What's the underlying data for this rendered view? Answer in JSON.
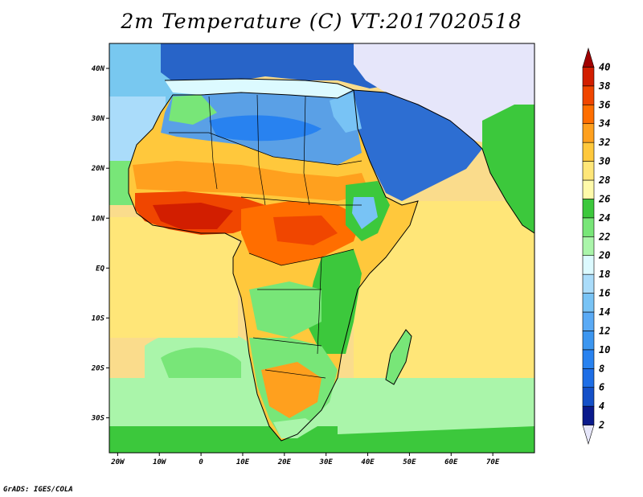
{
  "title": "2m Temperature (C) VT:2017020518",
  "credit": "GrADS: IGES/COLA",
  "map": {
    "lon_range": [
      -22,
      80
    ],
    "lat_range": [
      -37,
      45
    ],
    "x_ticks": [
      {
        "value": -20,
        "label": "20W"
      },
      {
        "value": -10,
        "label": "10W"
      },
      {
        "value": 0,
        "label": "0"
      },
      {
        "value": 10,
        "label": "10E"
      },
      {
        "value": 20,
        "label": "20E"
      },
      {
        "value": 30,
        "label": "30E"
      },
      {
        "value": 40,
        "label": "40E"
      },
      {
        "value": 50,
        "label": "50E"
      },
      {
        "value": 60,
        "label": "60E"
      },
      {
        "value": 70,
        "label": "70E"
      }
    ],
    "y_ticks": [
      {
        "value": 40,
        "label": "40N"
      },
      {
        "value": 30,
        "label": "30N"
      },
      {
        "value": 20,
        "label": "20N"
      },
      {
        "value": 10,
        "label": "10N"
      },
      {
        "value": 0,
        "label": "EQ"
      },
      {
        "value": -10,
        "label": "10S"
      },
      {
        "value": -20,
        "label": "20S"
      },
      {
        "value": -30,
        "label": "30S"
      }
    ]
  },
  "colorbar": {
    "levels": [
      "2",
      "4",
      "6",
      "8",
      "10",
      "12",
      "14",
      "16",
      "18",
      "20",
      "22",
      "24",
      "26",
      "28",
      "30",
      "32",
      "34",
      "36",
      "38",
      "40"
    ],
    "colors": [
      "#e6e6fa",
      "#0a1a8c",
      "#1450c8",
      "#1e6ee6",
      "#2882f0",
      "#3c96f0",
      "#5aaaf5",
      "#78c3f5",
      "#aadcfa",
      "#dcfaff",
      "#aaf5aa",
      "#78e678",
      "#3cc83c",
      "#fffaaa",
      "#ffe678",
      "#ffc83c",
      "#ffa01e",
      "#ff6e00",
      "#f04600",
      "#d21e00",
      "#a00000"
    ]
  },
  "regions": {
    "ocean": "#fadc8c",
    "africa_low": "#f5a03c",
    "sahara": "#5aa0e6",
    "europe": "#2864c8",
    "arabia": "#2d6ed2",
    "iran": "#e6e6fa",
    "westafrica": "#e65014",
    "centralafrica": "#e66e1e",
    "southern": "#78dc78",
    "kalahari": "#f5a03c",
    "southocean": "#64d264",
    "deepsouth": "#3cbe50",
    "mediterranean": "#dcfaff",
    "atlantic_n": "#78c8f0",
    "madagascar": "#78dc78"
  }
}
